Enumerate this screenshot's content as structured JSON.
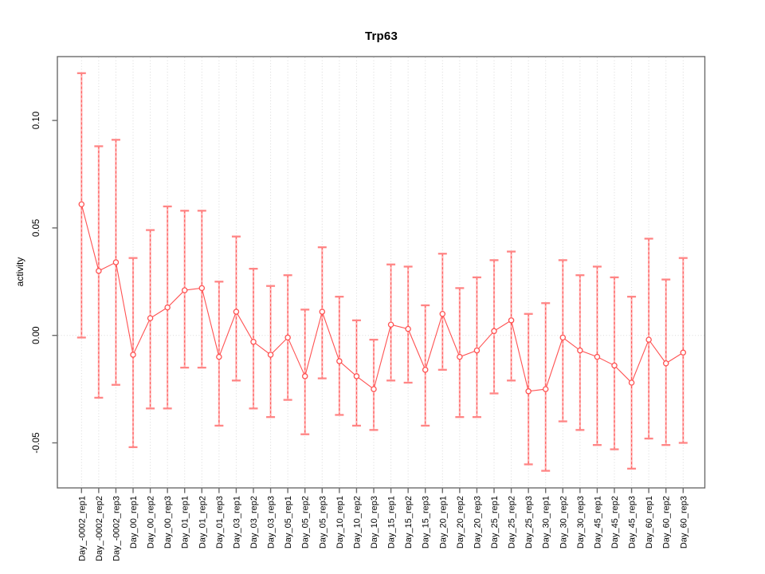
{
  "chart_data": {
    "type": "scatter",
    "title": "Trp63",
    "xlabel": "",
    "ylabel": "activity",
    "ylim": [
      -0.071,
      0.13
    ],
    "legend": "none",
    "grid": "dotted vertical line per category; dotted horizontal line at y=0",
    "ytick_values": [
      -0.05,
      0,
      0.05,
      0.1
    ],
    "ytick_labels": [
      "-0.05",
      "0.00",
      "0.05",
      "0.10"
    ],
    "categories": [
      "Day_-0002_rep1",
      "Day_-0002_rep2",
      "Day_-0002_rep3",
      "Day_00_rep1",
      "Day_00_rep2",
      "Day_00_rep3",
      "Day_01_rep1",
      "Day_01_rep2",
      "Day_01_rep3",
      "Day_03_rep1",
      "Day_03_rep2",
      "Day_03_rep3",
      "Day_05_rep1",
      "Day_05_rep2",
      "Day_05_rep3",
      "Day_10_rep1",
      "Day_10_rep2",
      "Day_10_rep3",
      "Day_15_rep1",
      "Day_15_rep2",
      "Day_15_rep3",
      "Day_20_rep1",
      "Day_20_rep2",
      "Day_20_rep3",
      "Day_25_rep1",
      "Day_25_rep2",
      "Day_25_rep3",
      "Day_30_rep1",
      "Day_30_rep2",
      "Day_30_rep3",
      "Day_45_rep1",
      "Day_45_rep2",
      "Day_45_rep3",
      "Day_60_rep1",
      "Day_60_rep2",
      "Day_60_rep3"
    ],
    "series": [
      {
        "name": "activity mean with error bars",
        "values": [
          0.061,
          0.03,
          0.034,
          -0.009,
          0.008,
          0.013,
          0.021,
          0.022,
          -0.01,
          0.011,
          -0.003,
          -0.009,
          -0.001,
          -0.019,
          0.011,
          -0.012,
          -0.019,
          -0.025,
          0.005,
          0.003,
          -0.016,
          0.01,
          -0.01,
          -0.007,
          0.002,
          0.007,
          -0.026,
          -0.025,
          -0.001,
          -0.007,
          -0.01,
          -0.014,
          -0.022,
          -0.002,
          -0.013,
          -0.008
        ],
        "upper": [
          0.122,
          0.088,
          0.091,
          0.036,
          0.049,
          0.06,
          0.058,
          0.058,
          0.025,
          0.046,
          0.031,
          0.023,
          0.028,
          0.012,
          0.041,
          0.018,
          0.007,
          -0.002,
          0.033,
          0.032,
          0.014,
          0.038,
          0.022,
          0.027,
          0.035,
          0.039,
          0.01,
          0.015,
          0.035,
          0.028,
          0.032,
          0.027,
          0.018,
          0.045,
          0.026,
          0.036
        ],
        "lower": [
          -0.001,
          -0.029,
          -0.023,
          -0.052,
          -0.034,
          -0.034,
          -0.015,
          -0.015,
          -0.042,
          -0.021,
          -0.034,
          -0.038,
          -0.03,
          -0.046,
          -0.02,
          -0.037,
          -0.042,
          -0.044,
          -0.021,
          -0.022,
          -0.042,
          -0.016,
          -0.038,
          -0.038,
          -0.027,
          -0.021,
          -0.06,
          -0.063,
          -0.04,
          -0.044,
          -0.051,
          -0.053,
          -0.062,
          -0.048,
          -0.051,
          -0.05
        ]
      }
    ],
    "colors": {
      "point": "#ff5252",
      "line": "#ff5252",
      "errorbar_cap": "#ff8585",
      "errorbar_base": "#ffb3b3",
      "grid": "#d9d9d9",
      "frame": "#6b6b6b",
      "text": "#000000",
      "background": "#ffffff"
    }
  }
}
